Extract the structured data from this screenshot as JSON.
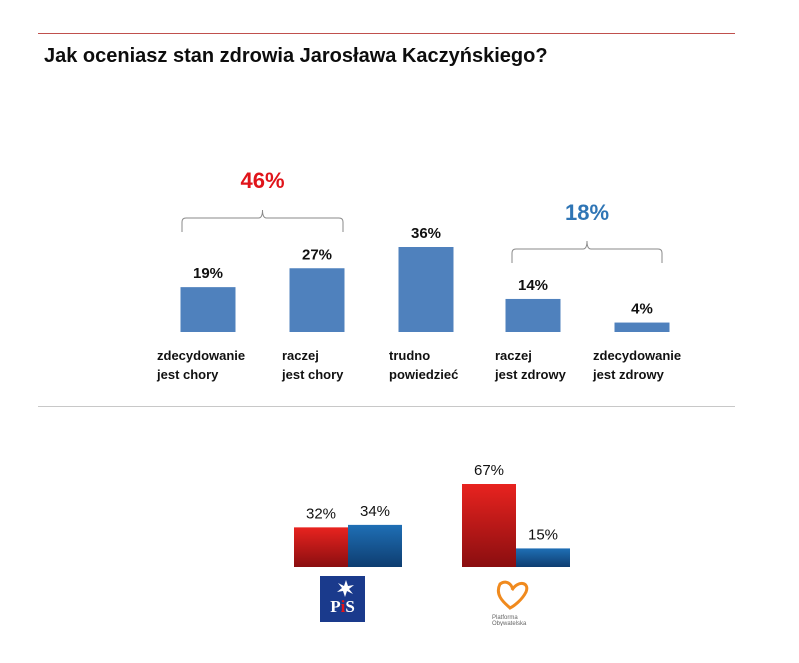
{
  "title": "Jak oceniasz stan zdrowia Jarosława Kaczyńskiego?",
  "chart_data": [
    {
      "type": "bar",
      "categories": [
        "zdecydowanie\njest chory",
        "raczej\njest chory",
        "trudno\npowiedzieć",
        "raczej\njest zdrowy",
        "zdecydowanie\njest zdrowy"
      ],
      "values": [
        19,
        27,
        36,
        14,
        4
      ],
      "value_labels": [
        "19%",
        "27%",
        "36%",
        "14%",
        "4%"
      ],
      "groups": [
        {
          "label": "46%",
          "color": "#e0141a",
          "members": [
            0,
            1
          ]
        },
        {
          "label": "18%",
          "color": "#2f75b5",
          "members": [
            3,
            4
          ]
        }
      ],
      "bar_color": "#4f81bd",
      "title": "",
      "xlabel": "",
      "ylabel": ""
    },
    {
      "type": "bar",
      "categories": [
        "PiS",
        "Platforma Obywatelska"
      ],
      "series": [
        {
          "values": [
            32,
            67
          ],
          "value_labels": [
            "32%",
            "67%"
          ],
          "color": "#d01b1b"
        },
        {
          "values": [
            34,
            15
          ],
          "value_labels": [
            "34%",
            "15%"
          ],
          "color": "#1f5fa0"
        }
      ],
      "title": "",
      "xlabel": "",
      "ylabel": ""
    }
  ],
  "logos": {
    "pis": {
      "text": "PiS",
      "icon": "pis-eagle-logo",
      "bg": "#1a3a8c"
    },
    "po": {
      "text": "Platforma Obywatelska",
      "icon": "po-heart-logo",
      "color": "#f08a1e"
    }
  }
}
